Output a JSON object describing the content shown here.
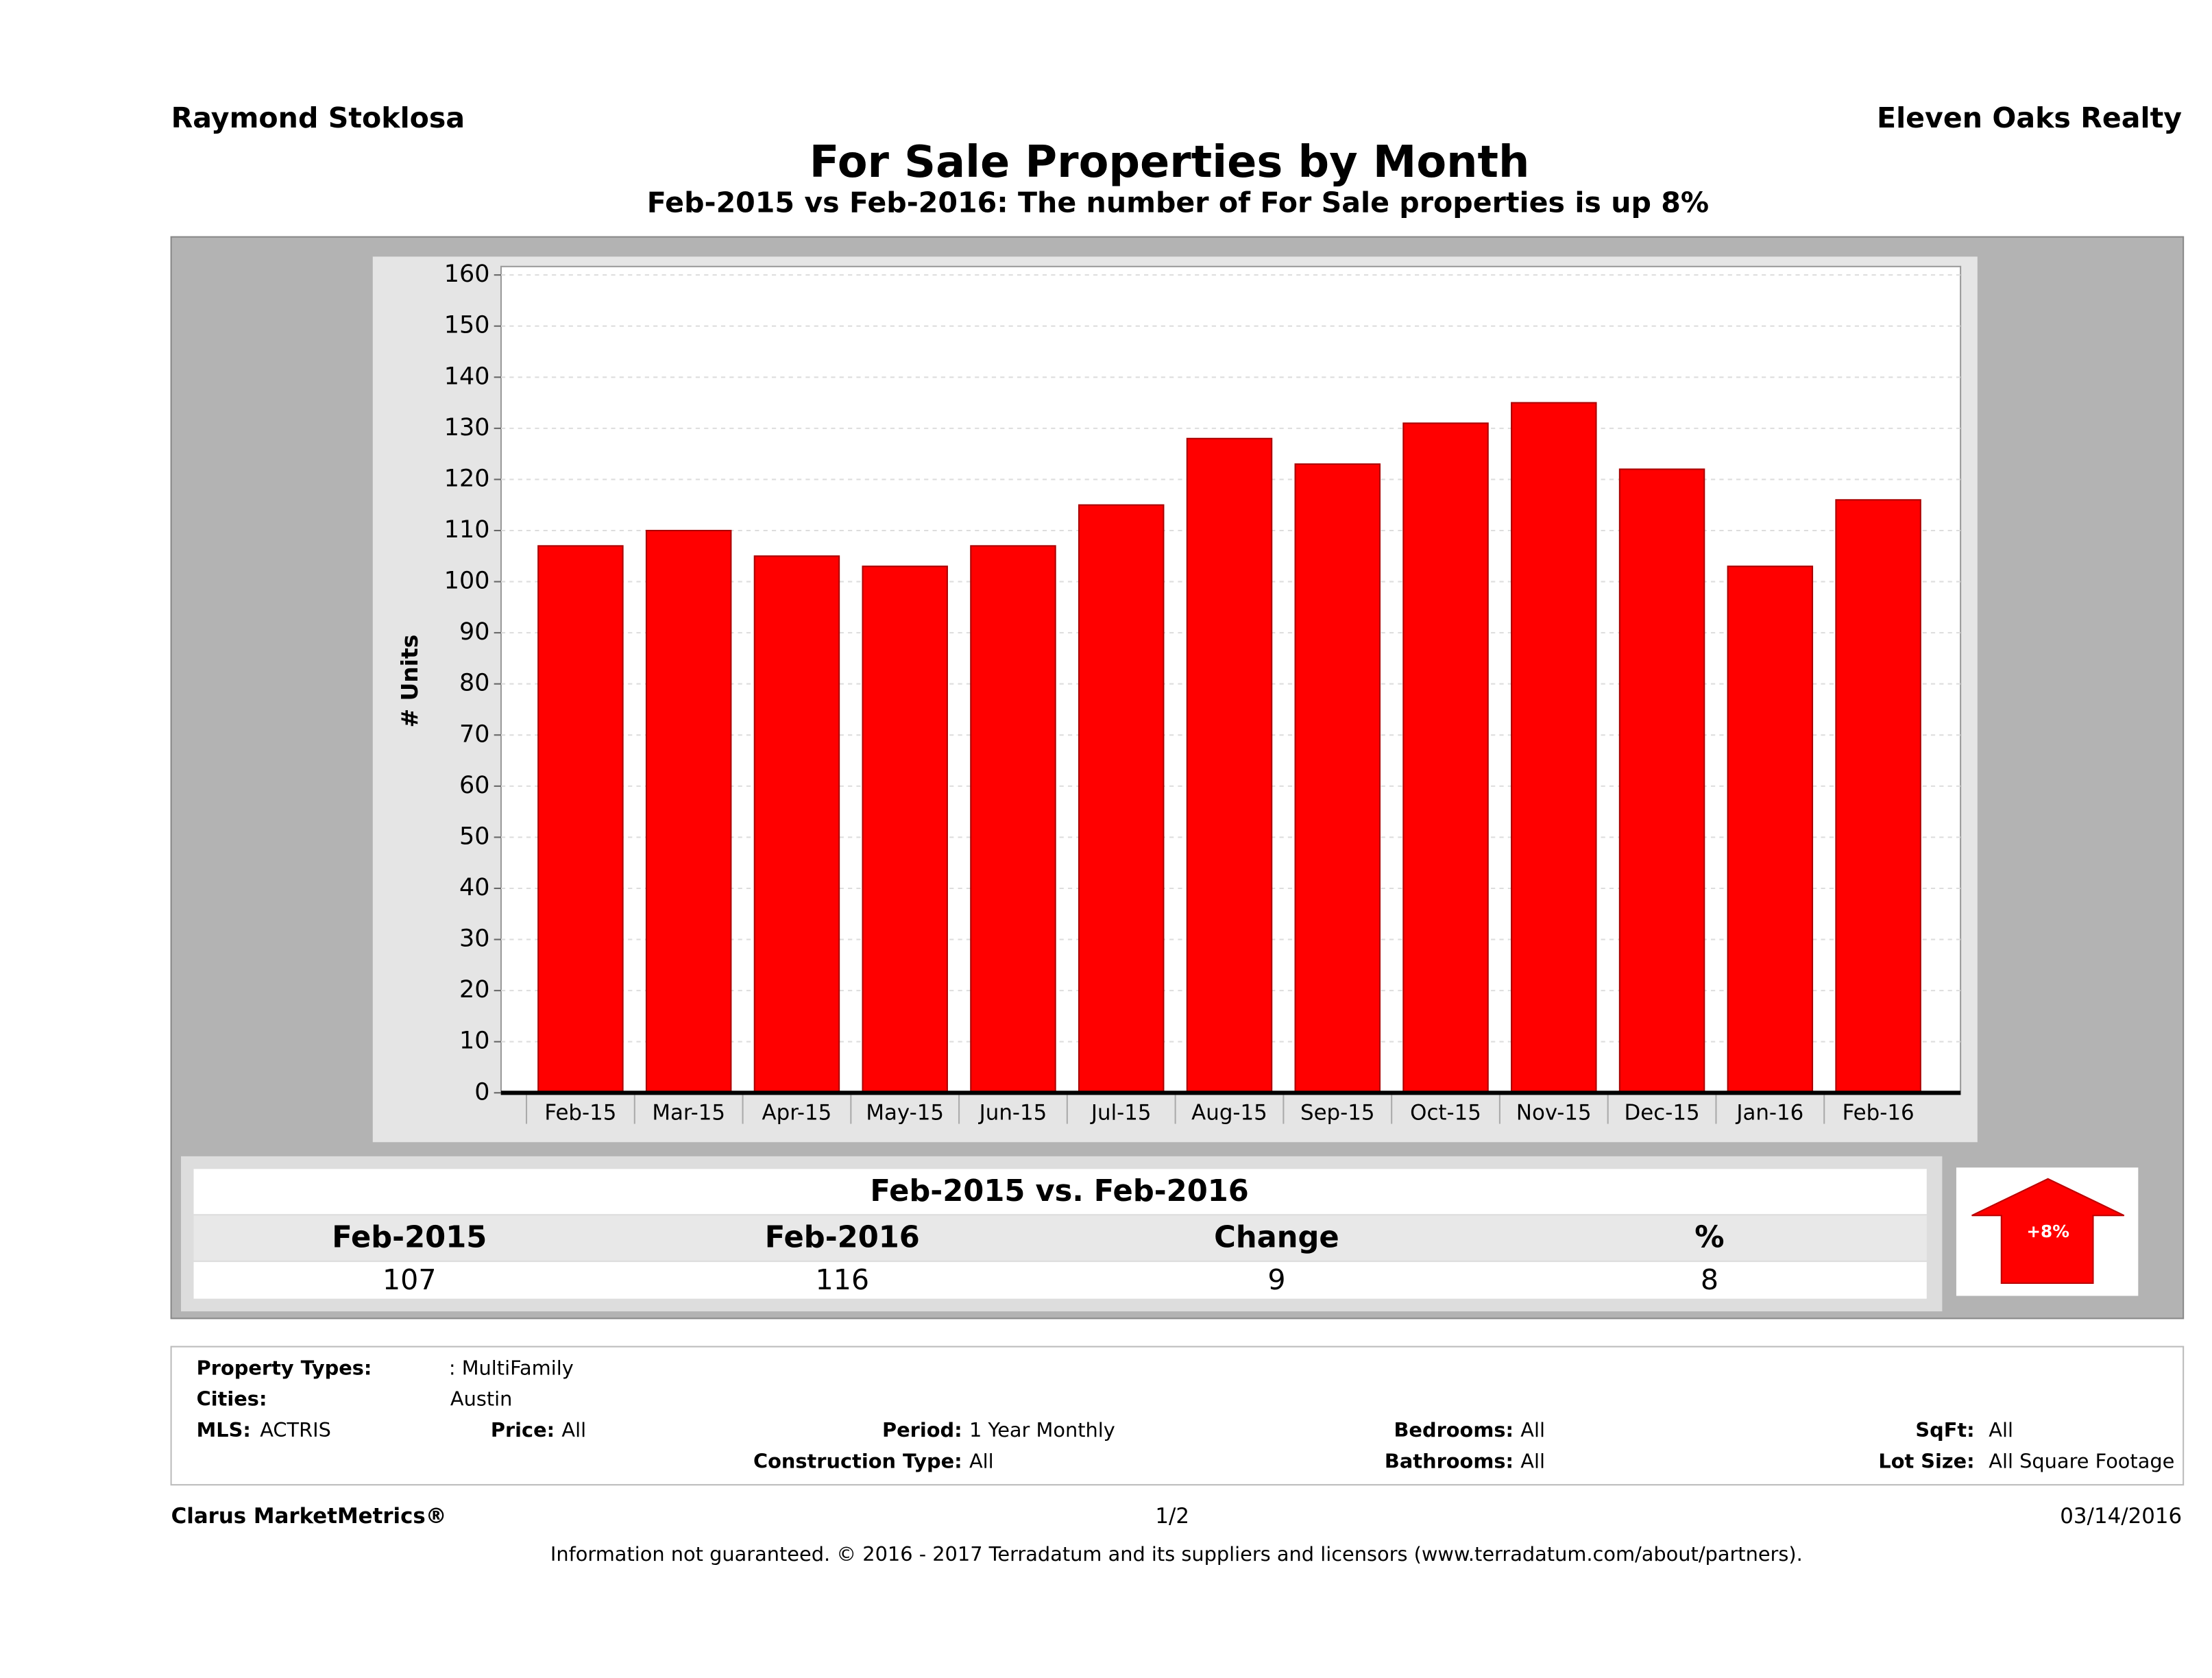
{
  "header": {
    "left": "Raymond Stoklosa",
    "right": "Eleven Oaks Realty"
  },
  "chart_data": {
    "type": "bar",
    "title": "For Sale Properties by Month",
    "subtitle": "Feb-2015 vs Feb-2016: The number of For Sale  properties is up 8%",
    "y_label": "# Units",
    "categories": [
      "Feb-15",
      "Mar-15",
      "Apr-15",
      "May-15",
      "Jun-15",
      "Jul-15",
      "Aug-15",
      "Sep-15",
      "Oct-15",
      "Nov-15",
      "Dec-15",
      "Jan-16",
      "Feb-16"
    ],
    "values": [
      107,
      110,
      105,
      103,
      107,
      115,
      128,
      123,
      131,
      135,
      122,
      103,
      116
    ],
    "color": "#ff0000",
    "ylim": [
      0,
      160
    ],
    "yticks": [
      0,
      10,
      20,
      30,
      40,
      50,
      60,
      70,
      80,
      90,
      100,
      110,
      120,
      130,
      140,
      150,
      160
    ],
    "grid": true
  },
  "summary": {
    "title": "Feb-2015 vs. Feb-2016",
    "headers": [
      "Feb-2015",
      "Feb-2016",
      "Change",
      "%"
    ],
    "values": [
      "107",
      "116",
      "9",
      "8"
    ],
    "badge": "+8%"
  },
  "info": {
    "property_types": {
      "label": "Property Types:",
      "value": ": MultiFamily"
    },
    "cities": {
      "label": "Cities:",
      "value": "Austin"
    },
    "mls": {
      "label": "MLS:",
      "value": "ACTRIS"
    },
    "price": {
      "label": "Price:",
      "value": "All"
    },
    "period": {
      "label": "Period:",
      "value": "1 Year Monthly"
    },
    "construction": {
      "label": "Construction Type:",
      "value": "All"
    },
    "bedrooms": {
      "label": "Bedrooms:",
      "value": "All"
    },
    "bathrooms": {
      "label": "Bathrooms:",
      "value": "All"
    },
    "sqft": {
      "label": "SqFt:",
      "value": "All"
    },
    "lot_size": {
      "label": "Lot Size:",
      "value": "All Square Footage"
    }
  },
  "footer": {
    "left": "Clarus MarketMetrics®",
    "center": "1/2",
    "right": "03/14/2016",
    "disclaimer": "Information not guaranteed. © 2016 - 2017 Terradatum and its suppliers and licensors (www.terradatum.com/about/partners)."
  }
}
